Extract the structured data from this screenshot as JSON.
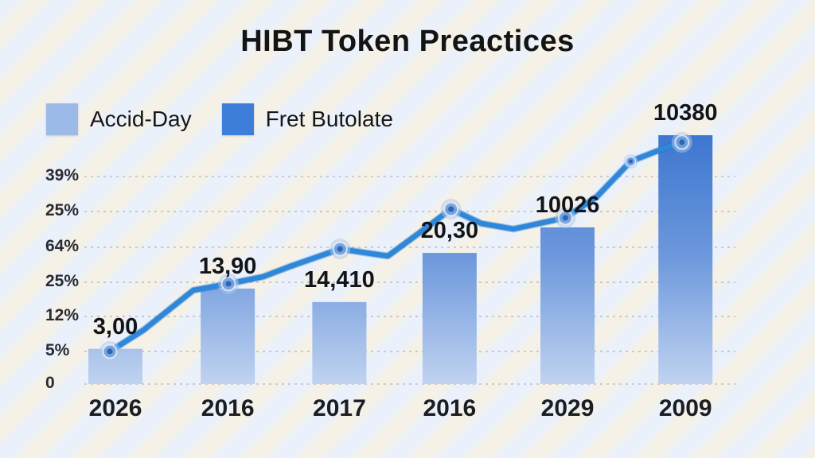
{
  "title": "HIBT Token Preactices",
  "legend": {
    "items": [
      {
        "label": "Accid-Day",
        "color": "#9cbae7"
      },
      {
        "label": "Fret Butolate",
        "color": "#3c7ed9"
      }
    ]
  },
  "colors": {
    "background": "#eaf1fb",
    "stripe": "#f7f1e2",
    "grid": "#b4b8bf",
    "bar_gradient_top": "#3571ce",
    "bar_gradient_mid": "#6d98dc",
    "bar_gradient_bottom": "#c9d9f2",
    "line": "#2e87da",
    "line_shadow": "#1d6cba",
    "marker_halo": "#b0c7e9",
    "marker_ring": "#6f9edd",
    "marker_core": "#245fae",
    "title_text": "#141414",
    "label_text": "#121419"
  },
  "chart_data": {
    "type": "bar",
    "title": "HIBT Token Preactices",
    "categories": [
      "2026",
      "2016",
      "2017",
      "2016",
      "2029",
      "2009"
    ],
    "x_centers_fx": [
      0.042,
      0.202,
      0.361,
      0.518,
      0.686,
      0.854
    ],
    "series": [
      {
        "name": "Accid-Day",
        "kind": "bar",
        "value_labels": [
          "3,00",
          "13,90",
          "14,410",
          "20,30",
          "10026",
          "10380"
        ],
        "values": [
          17,
          46,
          39.5,
          63.2,
          75.5,
          119.9
        ]
      },
      {
        "name": "Fret Butolate",
        "kind": "line",
        "points": [
          {
            "fx": 0.034,
            "v": 15.7,
            "marker": "big"
          },
          {
            "fx": 0.082,
            "v": 26.0,
            "marker": ""
          },
          {
            "fx": 0.153,
            "v": 45.2,
            "marker": ""
          },
          {
            "fx": 0.203,
            "v": 48.3,
            "marker": "big"
          },
          {
            "fx": 0.252,
            "v": 51.7,
            "marker": ""
          },
          {
            "fx": 0.291,
            "v": 56.7,
            "marker": ""
          },
          {
            "fx": 0.362,
            "v": 65.1,
            "marker": "big"
          },
          {
            "fx": 0.399,
            "v": 63.2,
            "marker": ""
          },
          {
            "fx": 0.43,
            "v": 61.7,
            "marker": ""
          },
          {
            "fx": 0.478,
            "v": 73.6,
            "marker": ""
          },
          {
            "fx": 0.52,
            "v": 84.3,
            "marker": "big"
          },
          {
            "fx": 0.563,
            "v": 77.4,
            "marker": ""
          },
          {
            "fx": 0.609,
            "v": 74.7,
            "marker": ""
          },
          {
            "fx": 0.683,
            "v": 80.1,
            "marker": "big"
          },
          {
            "fx": 0.728,
            "v": 90.4,
            "marker": ""
          },
          {
            "fx": 0.776,
            "v": 107.3,
            "marker": "small"
          },
          {
            "fx": 0.819,
            "v": 113.0,
            "marker": ""
          },
          {
            "fx": 0.849,
            "v": 116.5,
            "marker": "big"
          }
        ]
      }
    ],
    "y_axis": {
      "ticks": [
        {
          "label": "39%",
          "value": 100.0
        },
        {
          "label": "25%",
          "value": 83.1
        },
        {
          "label": "64%",
          "value": 65.9
        },
        {
          "label": "25%",
          "value": 49.0
        },
        {
          "label": "12%",
          "value": 32.6
        },
        {
          "label": "5%",
          "value": 15.7
        },
        {
          "label": "0",
          "value": 0.0
        }
      ],
      "ylim": [
        0,
        130
      ],
      "grid": "dashed"
    },
    "legend_position": "top-left"
  }
}
